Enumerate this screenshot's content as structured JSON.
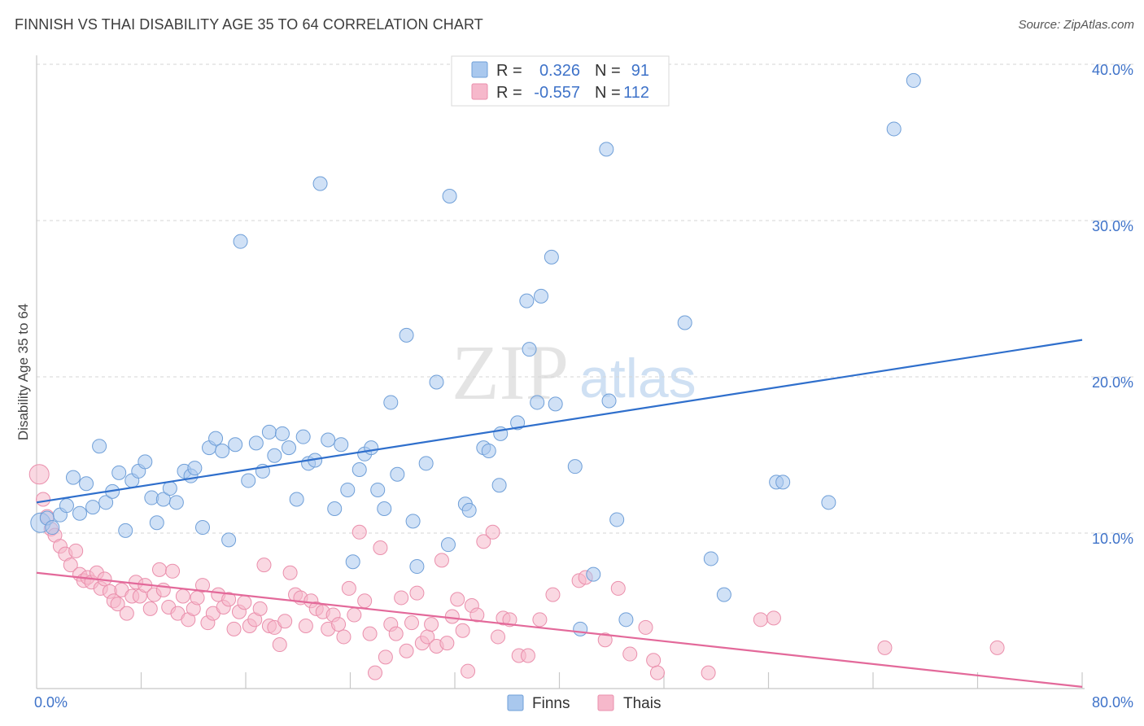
{
  "header": {
    "title": "FINNISH VS THAI DISABILITY AGE 35 TO 64 CORRELATION CHART",
    "source": "Source: ZipAtlas.com"
  },
  "watermark": {
    "zip": "ZIP",
    "atlas": "atlas"
  },
  "legend": {
    "rows": [
      {
        "r_label": "R =",
        "r_value": "0.326",
        "n_label": "N =",
        "n_value": "91"
      },
      {
        "r_label": "R =",
        "r_value": "-0.557",
        "n_label": "N =",
        "n_value": "112"
      }
    ]
  },
  "bottom_legend": {
    "finns": "Finns",
    "thais": "Thais"
  },
  "colors": {
    "finns_fill": "#a9c8ee",
    "finns_stroke": "#6f9fd8",
    "finns_line": "#2f6fcc",
    "thais_fill": "#f6b8cb",
    "thais_stroke": "#ea8fac",
    "thais_line": "#e3699a",
    "accent_text": "#3f73c9",
    "grid": "#d6d6d6"
  },
  "chart_data": {
    "type": "scatter",
    "title": "FINNISH VS THAI DISABILITY AGE 35 TO 64 CORRELATION CHART",
    "xlabel": "",
    "ylabel": "Disability Age 35 to 64",
    "xlim": [
      0,
      80
    ],
    "ylim": [
      0,
      40
    ],
    "x_tick_labels": [
      "0.0%",
      "80.0%"
    ],
    "y_ticks": [
      10,
      20,
      30,
      40
    ],
    "y_tick_labels": [
      "10.0%",
      "20.0%",
      "30.0%",
      "40.0%"
    ],
    "grid": true,
    "legend_position": "top-center",
    "series": [
      {
        "name": "Finns",
        "r": 0.326,
        "n": 91,
        "trend": {
          "x": [
            0,
            80
          ],
          "y": [
            12.9,
            23.3
          ]
        },
        "points": [
          [
            0.3,
            11.6
          ],
          [
            0.8,
            11.9
          ],
          [
            1.2,
            11.3
          ],
          [
            1.8,
            12.1
          ],
          [
            2.3,
            12.7
          ],
          [
            2.8,
            14.5
          ],
          [
            3.3,
            12.2
          ],
          [
            3.8,
            14.1
          ],
          [
            4.3,
            12.6
          ],
          [
            4.8,
            16.5
          ],
          [
            5.3,
            12.9
          ],
          [
            5.8,
            13.6
          ],
          [
            6.3,
            14.8
          ],
          [
            6.8,
            11.1
          ],
          [
            7.3,
            14.3
          ],
          [
            7.8,
            14.9
          ],
          [
            8.3,
            15.5
          ],
          [
            8.8,
            13.2
          ],
          [
            9.2,
            11.6
          ],
          [
            9.7,
            13.1
          ],
          [
            10.2,
            13.8
          ],
          [
            10.7,
            12.9
          ],
          [
            11.3,
            14.9
          ],
          [
            11.8,
            14.6
          ],
          [
            12.1,
            15.1
          ],
          [
            12.7,
            11.3
          ],
          [
            13.2,
            16.4
          ],
          [
            13.7,
            17.0
          ],
          [
            14.2,
            16.2
          ],
          [
            14.7,
            10.5
          ],
          [
            15.2,
            16.6
          ],
          [
            15.6,
            29.6
          ],
          [
            16.2,
            14.3
          ],
          [
            16.8,
            16.7
          ],
          [
            17.3,
            14.9
          ],
          [
            17.8,
            17.4
          ],
          [
            18.2,
            15.9
          ],
          [
            18.8,
            17.3
          ],
          [
            19.3,
            16.4
          ],
          [
            19.9,
            13.1
          ],
          [
            20.4,
            17.1
          ],
          [
            20.8,
            15.4
          ],
          [
            21.3,
            15.6
          ],
          [
            21.7,
            33.3
          ],
          [
            22.3,
            16.9
          ],
          [
            22.8,
            12.5
          ],
          [
            23.3,
            16.6
          ],
          [
            23.8,
            13.7
          ],
          [
            24.2,
            9.1
          ],
          [
            24.7,
            15.0
          ],
          [
            25.1,
            16.0
          ],
          [
            25.6,
            16.4
          ],
          [
            26.1,
            13.7
          ],
          [
            26.6,
            12.5
          ],
          [
            27.1,
            19.3
          ],
          [
            27.6,
            14.7
          ],
          [
            28.3,
            23.6
          ],
          [
            28.8,
            11.7
          ],
          [
            29.1,
            8.8
          ],
          [
            29.8,
            15.4
          ],
          [
            30.6,
            20.6
          ],
          [
            31.5,
            10.2
          ],
          [
            31.6,
            32.5
          ],
          [
            32.8,
            12.8
          ],
          [
            33.1,
            12.4
          ],
          [
            34.2,
            16.4
          ],
          [
            34.6,
            16.2
          ],
          [
            35.4,
            14.0
          ],
          [
            35.5,
            17.3
          ],
          [
            36.8,
            18.0
          ],
          [
            37.5,
            25.8
          ],
          [
            37.7,
            22.7
          ],
          [
            38.3,
            19.3
          ],
          [
            38.6,
            26.1
          ],
          [
            39.4,
            28.6
          ],
          [
            39.7,
            19.2
          ],
          [
            41.2,
            15.2
          ],
          [
            41.6,
            4.8
          ],
          [
            42.6,
            8.3
          ],
          [
            43.6,
            35.5
          ],
          [
            43.8,
            19.4
          ],
          [
            44.4,
            11.8
          ],
          [
            45.1,
            5.4
          ],
          [
            49.6,
            24.4
          ],
          [
            51.6,
            9.3
          ],
          [
            52.6,
            7.0
          ],
          [
            56.6,
            14.2
          ],
          [
            57.1,
            14.2
          ],
          [
            60.6,
            12.9
          ],
          [
            65.6,
            36.8
          ],
          [
            67.1,
            39.9
          ]
        ]
      },
      {
        "name": "Thais",
        "r": -0.557,
        "n": 112,
        "trend": {
          "x": [
            0,
            80
          ],
          "y": [
            8.4,
            1.1
          ]
        },
        "points": [
          [
            0.2,
            14.7
          ],
          [
            0.5,
            13.1
          ],
          [
            0.8,
            12.0
          ],
          [
            1.1,
            11.2
          ],
          [
            1.4,
            10.8
          ],
          [
            1.8,
            10.1
          ],
          [
            2.2,
            9.6
          ],
          [
            2.6,
            8.9
          ],
          [
            3.0,
            9.8
          ],
          [
            3.3,
            8.3
          ],
          [
            3.6,
            7.9
          ],
          [
            3.9,
            8.1
          ],
          [
            4.2,
            7.8
          ],
          [
            4.6,
            8.4
          ],
          [
            4.9,
            7.4
          ],
          [
            5.2,
            8.0
          ],
          [
            5.6,
            7.2
          ],
          [
            5.9,
            6.6
          ],
          [
            6.2,
            6.4
          ],
          [
            6.5,
            7.3
          ],
          [
            6.9,
            5.8
          ],
          [
            7.3,
            6.9
          ],
          [
            7.6,
            7.8
          ],
          [
            7.9,
            6.9
          ],
          [
            8.3,
            7.6
          ],
          [
            8.7,
            6.1
          ],
          [
            9.0,
            7.0
          ],
          [
            9.4,
            8.6
          ],
          [
            9.7,
            7.3
          ],
          [
            10.1,
            6.2
          ],
          [
            10.4,
            8.5
          ],
          [
            10.8,
            5.8
          ],
          [
            11.2,
            6.9
          ],
          [
            11.6,
            5.4
          ],
          [
            12.0,
            6.1
          ],
          [
            12.3,
            6.8
          ],
          [
            12.7,
            7.6
          ],
          [
            13.1,
            5.2
          ],
          [
            13.5,
            5.8
          ],
          [
            13.9,
            7.0
          ],
          [
            14.3,
            6.2
          ],
          [
            14.7,
            6.7
          ],
          [
            15.1,
            4.8
          ],
          [
            15.5,
            5.9
          ],
          [
            15.9,
            6.5
          ],
          [
            16.3,
            5.0
          ],
          [
            16.7,
            5.4
          ],
          [
            17.1,
            6.1
          ],
          [
            17.4,
            8.9
          ],
          [
            17.8,
            5.0
          ],
          [
            18.2,
            4.9
          ],
          [
            18.6,
            3.8
          ],
          [
            19.0,
            5.3
          ],
          [
            19.4,
            8.4
          ],
          [
            19.8,
            7.0
          ],
          [
            20.2,
            6.8
          ],
          [
            20.6,
            5.0
          ],
          [
            21.0,
            6.6
          ],
          [
            21.4,
            6.1
          ],
          [
            21.9,
            5.9
          ],
          [
            22.3,
            4.8
          ],
          [
            22.7,
            5.7
          ],
          [
            23.1,
            5.1
          ],
          [
            23.5,
            4.3
          ],
          [
            23.9,
            7.4
          ],
          [
            24.3,
            5.7
          ],
          [
            24.7,
            11.0
          ],
          [
            25.1,
            6.6
          ],
          [
            25.5,
            4.5
          ],
          [
            25.9,
            2.0
          ],
          [
            26.3,
            10.0
          ],
          [
            26.7,
            3.0
          ],
          [
            27.1,
            5.1
          ],
          [
            27.5,
            4.5
          ],
          [
            27.9,
            6.8
          ],
          [
            28.3,
            3.4
          ],
          [
            28.7,
            5.2
          ],
          [
            29.1,
            7.1
          ],
          [
            29.5,
            3.9
          ],
          [
            29.9,
            4.3
          ],
          [
            30.2,
            5.1
          ],
          [
            30.6,
            3.7
          ],
          [
            31.0,
            9.2
          ],
          [
            31.4,
            3.9
          ],
          [
            31.8,
            5.6
          ],
          [
            32.2,
            6.7
          ],
          [
            32.6,
            4.7
          ],
          [
            33.0,
            2.1
          ],
          [
            33.3,
            6.3
          ],
          [
            33.7,
            5.7
          ],
          [
            34.2,
            10.4
          ],
          [
            34.9,
            11.0
          ],
          [
            35.3,
            4.3
          ],
          [
            35.7,
            5.5
          ],
          [
            36.2,
            5.4
          ],
          [
            36.9,
            3.1
          ],
          [
            37.6,
            3.1
          ],
          [
            38.5,
            5.4
          ],
          [
            39.5,
            7.0
          ],
          [
            41.5,
            7.9
          ],
          [
            42.0,
            8.1
          ],
          [
            43.5,
            4.1
          ],
          [
            44.5,
            7.4
          ],
          [
            45.4,
            3.2
          ],
          [
            46.6,
            4.9
          ],
          [
            47.2,
            2.8
          ],
          [
            47.5,
            2.0
          ],
          [
            51.4,
            2.0
          ],
          [
            55.4,
            5.4
          ],
          [
            56.4,
            5.5
          ],
          [
            64.9,
            3.6
          ],
          [
            73.5,
            3.6
          ]
        ]
      }
    ]
  }
}
